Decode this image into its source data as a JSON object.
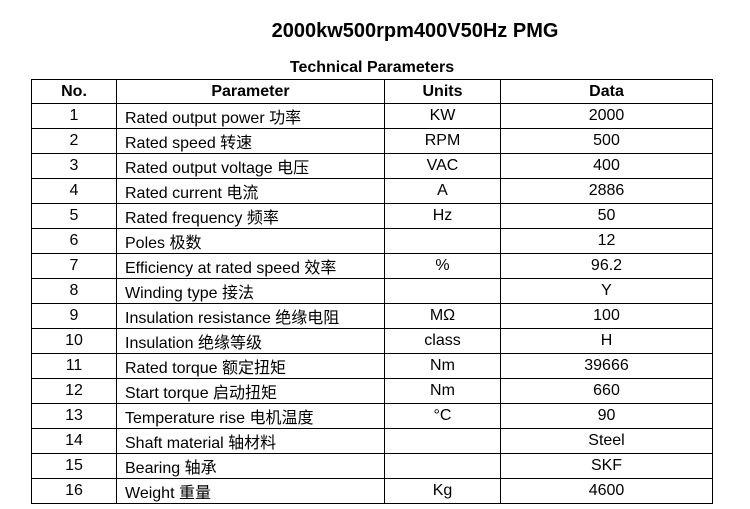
{
  "header": {
    "title": "2000kw500rpm400V50Hz PMG",
    "subtitle": "Technical Parameters"
  },
  "table": {
    "columns": [
      "No.",
      "Parameter",
      "Units",
      "Data"
    ],
    "rows": [
      [
        "1",
        "Rated output power 功率",
        "KW",
        "2000"
      ],
      [
        "2",
        "Rated speed 转速",
        "RPM",
        "500"
      ],
      [
        "3",
        "Rated output voltage 电压",
        "VAC",
        "400"
      ],
      [
        "4",
        "Rated current 电流",
        "A",
        "2886"
      ],
      [
        "5",
        "Rated frequency 频率",
        "Hz",
        "50"
      ],
      [
        "6",
        "Poles 极数",
        null,
        "12"
      ],
      [
        "7",
        "Efficiency at rated speed 效率",
        "%",
        "96.2"
      ],
      [
        "8",
        "Winding type 接法",
        null,
        "Y"
      ],
      [
        "9",
        "Insulation resistance 绝缘电阻",
        "MΩ",
        "100"
      ],
      [
        "10",
        "Insulation 绝缘等级",
        "class",
        "H"
      ],
      [
        "11",
        "Rated torque 额定扭矩",
        "Nm",
        "39666"
      ],
      [
        "12",
        "Start torque 启动扭矩",
        "Nm",
        "660"
      ],
      [
        "13",
        "Temperature rise 电机温度",
        "°C",
        "90"
      ],
      [
        "14",
        "Shaft material 轴材料",
        null,
        "Steel"
      ],
      [
        "15",
        "Bearing 轴承",
        null,
        "SKF"
      ],
      [
        "16",
        "Weight 重量",
        "Kg",
        "4600"
      ]
    ]
  }
}
